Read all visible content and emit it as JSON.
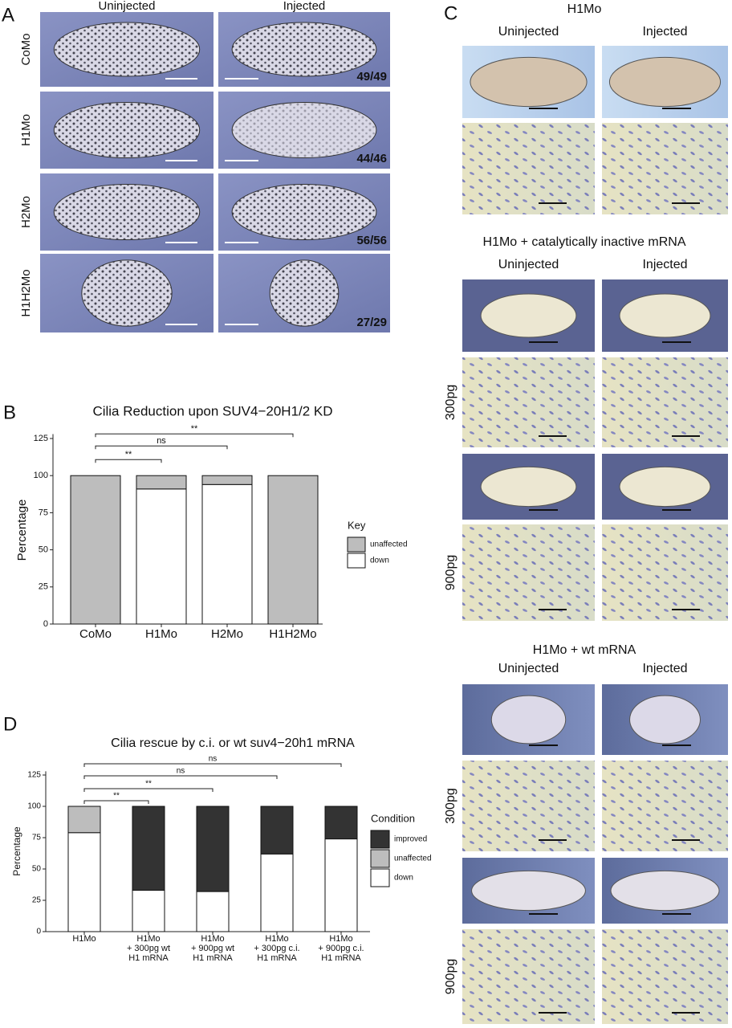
{
  "panel_a": {
    "letter": "A",
    "columns": [
      "Uninjected",
      "Injected"
    ],
    "rows": [
      {
        "label": "CoMo",
        "count": "49/49"
      },
      {
        "label": "H1Mo",
        "count": "44/46"
      },
      {
        "label": "H2Mo",
        "count": "56/56"
      },
      {
        "label": "H1H2Mo",
        "count": "27/29"
      }
    ]
  },
  "panel_c": {
    "letter": "C",
    "groups": [
      {
        "title": "H1Mo",
        "columns": [
          "Uninjected",
          "Injected"
        ]
      },
      {
        "title": "H1Mo + catalytically inactive mRNA",
        "columns": [
          "Uninjected",
          "Injected"
        ],
        "doses": [
          "300pg",
          "900pg"
        ]
      },
      {
        "title": "H1Mo + wt mRNA",
        "columns": [
          "Uninjected",
          "Injected"
        ],
        "doses": [
          "300pg",
          "900pg"
        ]
      }
    ]
  },
  "chart_data": [
    {
      "type": "stacked_bar",
      "panel": "B",
      "title": "Cilia Reduction upon SUV4−20H1/2 KD",
      "y_label": "Percentage",
      "categories": [
        [
          "CoMo"
        ],
        [
          "H1Mo"
        ],
        [
          "H2Mo"
        ],
        [
          "H1H2Mo"
        ]
      ],
      "series": [
        {
          "name": "down",
          "color": "#ffffff",
          "values": [
            0,
            91,
            94,
            0
          ]
        },
        {
          "name": "unaffected",
          "color": "#bdbdbd",
          "values": [
            100,
            9,
            6,
            100
          ]
        }
      ],
      "ylim": [
        0,
        128
      ],
      "yticks": [
        0,
        25,
        50,
        75,
        100,
        125
      ],
      "legend_title": "Key",
      "annotations": [
        {
          "text": "**",
          "between": [
            0,
            1
          ]
        },
        {
          "text": "ns",
          "between": [
            0,
            2
          ]
        },
        {
          "text": "**",
          "between": [
            0,
            3
          ]
        }
      ]
    },
    {
      "type": "stacked_bar",
      "panel": "D",
      "title": "Cilia rescue by c.i. or wt suv4−20h1 mRNA",
      "y_label": "Percentage",
      "categories": [
        [
          "H1Mo"
        ],
        [
          "H1Mo",
          "+ 300pg wt",
          "H1 mRNA"
        ],
        [
          "H1Mo",
          "+ 900pg wt",
          "H1 mRNA"
        ],
        [
          "H1Mo",
          "+ 300pg c.i.",
          "H1 mRNA"
        ],
        [
          "H1Mo",
          "+ 900pg c.i.",
          "H1 mRNA"
        ]
      ],
      "series": [
        {
          "name": "down",
          "color": "#ffffff",
          "values": [
            79,
            33,
            32,
            62,
            74
          ]
        },
        {
          "name": "unaffected",
          "color": "#bdbdbd",
          "values": [
            21,
            0,
            0,
            0,
            0
          ]
        },
        {
          "name": "improved",
          "color": "#333333",
          "values": [
            0,
            67,
            68,
            38,
            26
          ]
        }
      ],
      "ylim": [
        0,
        128
      ],
      "yticks": [
        0,
        25,
        50,
        75,
        100,
        125
      ],
      "legend_title": "Condition",
      "annotations": [
        {
          "text": "**",
          "between": [
            0,
            1
          ]
        },
        {
          "text": "**",
          "between": [
            0,
            2
          ]
        },
        {
          "text": "ns",
          "between": [
            0,
            3
          ]
        },
        {
          "text": "ns",
          "between": [
            0,
            4
          ]
        }
      ]
    }
  ]
}
